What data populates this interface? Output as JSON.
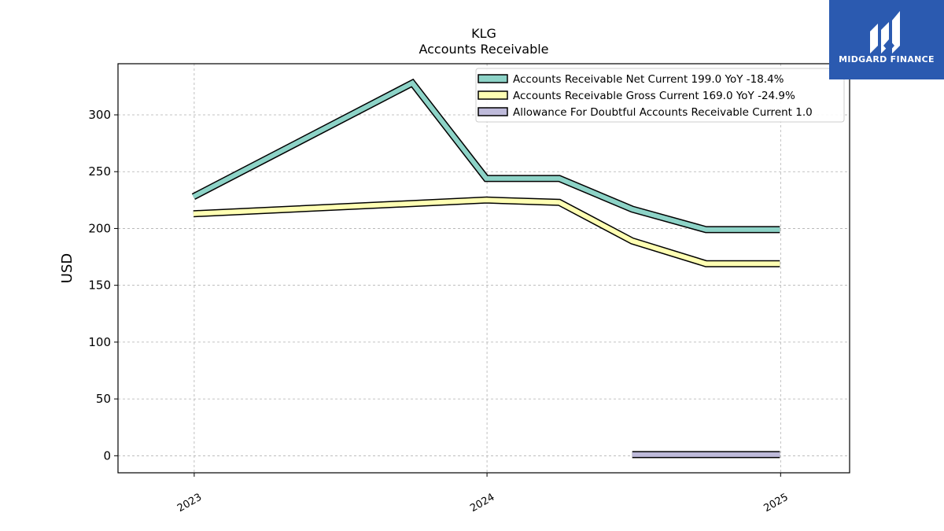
{
  "chart_data": {
    "type": "line",
    "title": "KLG",
    "subtitle": "Accounts Receivable",
    "ylabel": "USD",
    "xlabel": "",
    "ylim": [
      -15,
      345
    ],
    "yticks": [
      0,
      50,
      100,
      150,
      200,
      250,
      300
    ],
    "xlim": [
      "2022-09-28",
      "2025-03-28"
    ],
    "xticks": [
      {
        "label": "2023",
        "x": "2023-01-01"
      },
      {
        "label": "2024",
        "x": "2024-01-01"
      },
      {
        "label": "2025",
        "x": "2025-01-01"
      }
    ],
    "grid": true,
    "legend_position": "top-right",
    "series": [
      {
        "name": "Accounts Receivable Net Current  199.0 YoY -18.4%",
        "color": "#8dd3c7",
        "x": [
          "2022-12-31",
          "2023-09-30",
          "2023-12-31",
          "2024-03-31",
          "2024-06-30",
          "2024-09-30",
          "2024-12-31"
        ],
        "y": [
          228,
          328,
          244,
          244,
          217,
          199,
          199
        ]
      },
      {
        "name": "Accounts Receivable Gross Current  169.0 YoY -24.9%",
        "color": "#ffffb3",
        "x": [
          "2022-12-31",
          "2023-12-31",
          "2024-03-31",
          "2024-06-30",
          "2024-09-30",
          "2024-12-31"
        ],
        "y": [
          213,
          225,
          223,
          189,
          169,
          169
        ]
      },
      {
        "name": "Allowance For Doubtful Accounts Receivable Current  1.0",
        "color": "#bebada",
        "x": [
          "2024-06-30",
          "2024-09-30",
          "2024-12-31"
        ],
        "y": [
          1,
          1,
          1
        ]
      }
    ]
  },
  "logo": {
    "text": "MIDGARD FINANCE",
    "background": "#2b5ab0"
  }
}
